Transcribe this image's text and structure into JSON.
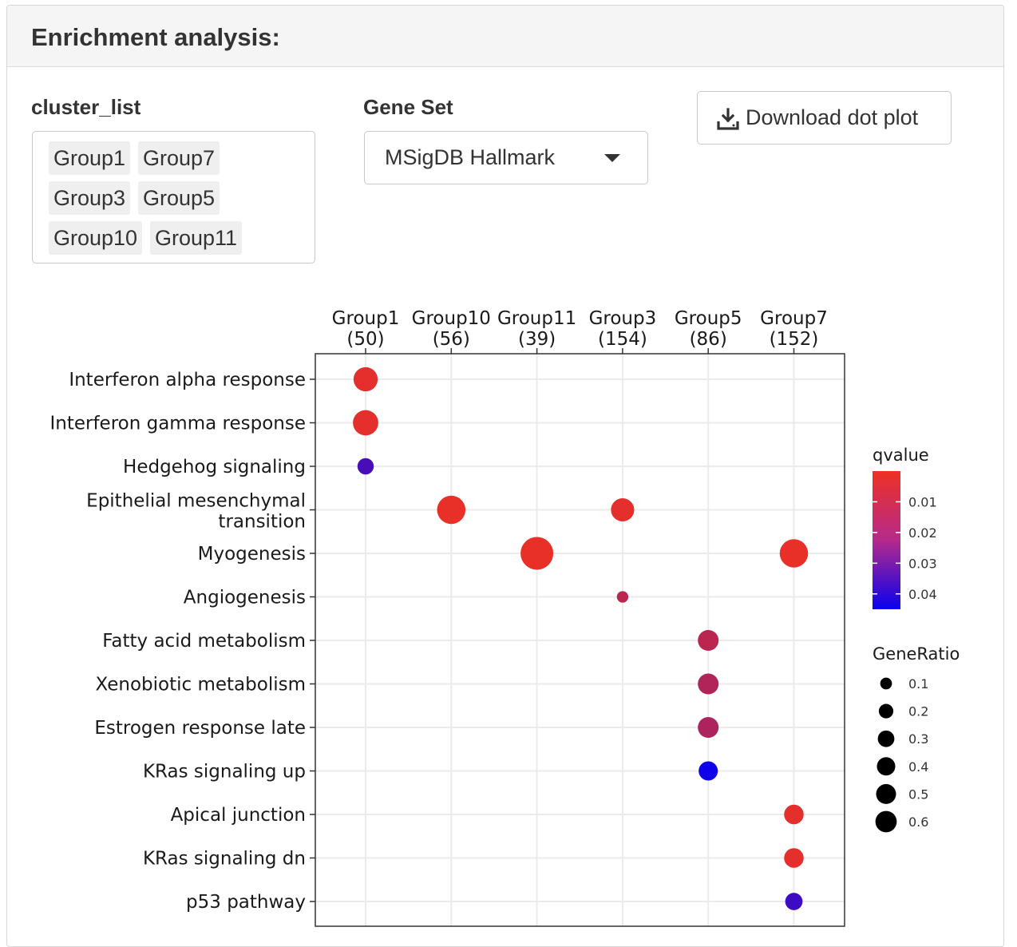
{
  "panel": {
    "title": "Enrichment analysis:"
  },
  "cluster_list": {
    "label": "cluster_list",
    "selected": [
      "Group1",
      "Group7",
      "Group3",
      "Group5",
      "Group10",
      "Group11"
    ]
  },
  "gene_set": {
    "label": "Gene Set",
    "value": "MSigDB Hallmark"
  },
  "download": {
    "label": "Download dot plot",
    "icon": "download-icon"
  },
  "chart_data": {
    "type": "scatter",
    "title": "",
    "x_categories": [
      {
        "name": "Group1",
        "count": "(50)"
      },
      {
        "name": "Group10",
        "count": "(56)"
      },
      {
        "name": "Group11",
        "count": "(39)"
      },
      {
        "name": "Group3",
        "count": "(154)"
      },
      {
        "name": "Group5",
        "count": "(86)"
      },
      {
        "name": "Group7",
        "count": "(152)"
      }
    ],
    "y_categories": [
      "Interferon alpha response",
      "Interferon gamma response",
      "Hedgehog signaling",
      "Epithelial mesenchymal transition",
      "Myogenesis",
      "Angiogenesis",
      "Fatty acid metabolism",
      "Xenobiotic metabolism",
      "Estrogen response late",
      "KRas signaling up",
      "Apical junction",
      "KRas signaling dn",
      "p53 pathway"
    ],
    "y_label_lines": [
      [
        "Interferon alpha response"
      ],
      [
        "Interferon gamma response"
      ],
      [
        "Hedgehog signaling"
      ],
      [
        "Epithelial mesenchymal",
        "transition"
      ],
      [
        "Myogenesis"
      ],
      [
        "Angiogenesis"
      ],
      [
        "Fatty acid metabolism"
      ],
      [
        "Xenobiotic metabolism"
      ],
      [
        "Estrogen response late"
      ],
      [
        "KRas signaling up"
      ],
      [
        "Apical junction"
      ],
      [
        "KRas signaling dn"
      ],
      [
        "p53 pathway"
      ]
    ],
    "points": [
      {
        "x": "Group1",
        "y": "Interferon alpha response",
        "geneRatio": 0.3,
        "qvalue": 0.002
      },
      {
        "x": "Group1",
        "y": "Interferon gamma response",
        "geneRatio": 0.34,
        "qvalue": 0.002
      },
      {
        "x": "Group1",
        "y": "Hedgehog signaling",
        "geneRatio": 0.1,
        "qvalue": 0.033
      },
      {
        "x": "Group10",
        "y": "Epithelial mesenchymal transition",
        "geneRatio": 0.45,
        "qvalue": 0.001
      },
      {
        "x": "Group3",
        "y": "Epithelial mesenchymal transition",
        "geneRatio": 0.27,
        "qvalue": 0.002
      },
      {
        "x": "Group11",
        "y": "Myogenesis",
        "geneRatio": 0.64,
        "qvalue": 0.001
      },
      {
        "x": "Group7",
        "y": "Myogenesis",
        "geneRatio": 0.45,
        "qvalue": 0.001
      },
      {
        "x": "Group3",
        "y": "Angiogenesis",
        "geneRatio": 0.03,
        "qvalue": 0.01
      },
      {
        "x": "Group5",
        "y": "Fatty acid metabolism",
        "geneRatio": 0.2,
        "qvalue": 0.01
      },
      {
        "x": "Group5",
        "y": "Xenobiotic metabolism",
        "geneRatio": 0.2,
        "qvalue": 0.012
      },
      {
        "x": "Group5",
        "y": "Estrogen response late",
        "geneRatio": 0.2,
        "qvalue": 0.013
      },
      {
        "x": "Group5",
        "y": "KRas signaling up",
        "geneRatio": 0.16,
        "qvalue": 0.044
      },
      {
        "x": "Group7",
        "y": "Apical junction",
        "geneRatio": 0.17,
        "qvalue": 0.002
      },
      {
        "x": "Group7",
        "y": "KRas signaling dn",
        "geneRatio": 0.17,
        "qvalue": 0.002
      },
      {
        "x": "Group7",
        "y": "p53 pathway",
        "geneRatio": 0.12,
        "qvalue": 0.035
      }
    ],
    "color_legend": {
      "title": "qvalue",
      "ticks": [
        "0.01",
        "0.02",
        "0.03",
        "0.04"
      ],
      "tick_values": [
        0.01,
        0.02,
        0.03,
        0.04
      ],
      "range": [
        0.0,
        0.045
      ],
      "low_color": "#ee3124",
      "high_color": "#0a00ee"
    },
    "size_legend": {
      "title": "GeneRatio",
      "values": [
        0.1,
        0.2,
        0.3,
        0.4,
        0.5,
        0.6
      ],
      "labels": [
        "0.1",
        "0.2",
        "0.3",
        "0.4",
        "0.5",
        "0.6"
      ]
    },
    "grid": true,
    "legend_placement": "right"
  }
}
